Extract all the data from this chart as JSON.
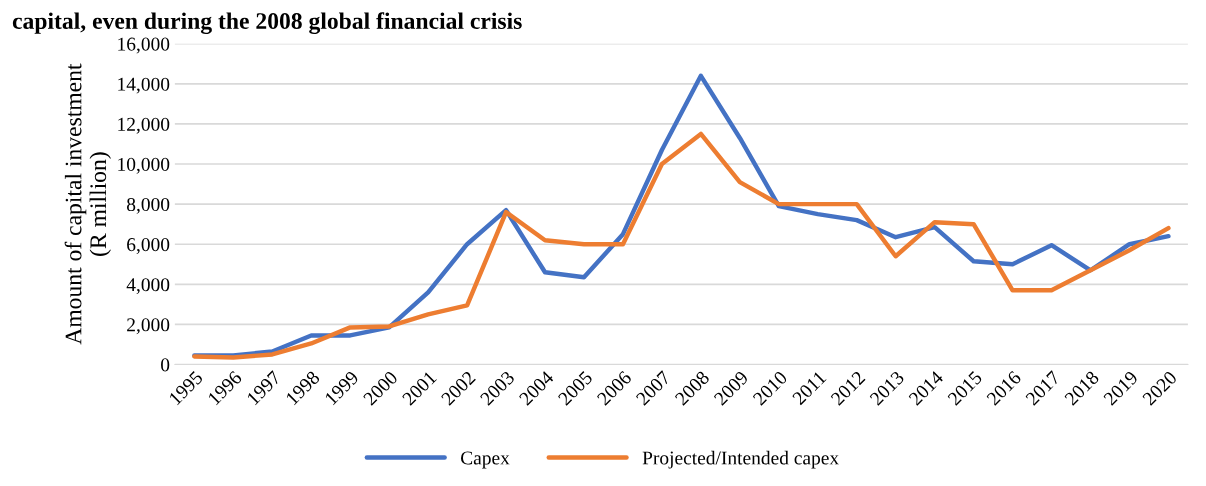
{
  "chart_data": {
    "type": "line",
    "title": "capital, even during the 2008 global financial crisis",
    "ylabel": "Amount of capital investment\n(R million)",
    "categories": [
      "1995",
      "1996",
      "1997",
      "1998",
      "1999",
      "2000",
      "2001",
      "2002",
      "2003",
      "2004",
      "2005",
      "2006",
      "2007",
      "2008",
      "2009",
      "2010",
      "2011",
      "2012",
      "2013",
      "2014",
      "2015",
      "2016",
      "2017",
      "2018",
      "2019",
      "2020"
    ],
    "series": [
      {
        "name": "Capex",
        "color": "#4472c4",
        "values": [
          450,
          450,
          650,
          1450,
          1450,
          1850,
          3600,
          6000,
          7700,
          4600,
          4350,
          6500,
          10700,
          14400,
          11300,
          7900,
          7500,
          7200,
          6350,
          6850,
          5150,
          5000,
          5950,
          4700,
          6000,
          6400
        ]
      },
      {
        "name": "Projected/Intended capex",
        "color": "#ed7d31",
        "values": [
          400,
          350,
          500,
          1050,
          1850,
          1900,
          2500,
          2950,
          7600,
          6200,
          6000,
          6000,
          10000,
          11500,
          9100,
          8000,
          8000,
          8000,
          5400,
          7100,
          7000,
          3700,
          3700,
          4700,
          5700,
          6800
        ]
      }
    ],
    "ylim": [
      0,
      16000
    ],
    "yticks": [
      {
        "value": 0,
        "label": "0"
      },
      {
        "value": 2000,
        "label": "2,000"
      },
      {
        "value": 4000,
        "label": "4,000"
      },
      {
        "value": 6000,
        "label": "6,000"
      },
      {
        "value": 8000,
        "label": "8,000"
      },
      {
        "value": 10000,
        "label": "10,000"
      },
      {
        "value": 12000,
        "label": "12,000"
      },
      {
        "value": 14000,
        "label": "14,000"
      },
      {
        "value": 16000,
        "label": "16,000"
      }
    ],
    "grid": "y",
    "legend": "bottom",
    "marker": "none",
    "line_style": "solid"
  }
}
